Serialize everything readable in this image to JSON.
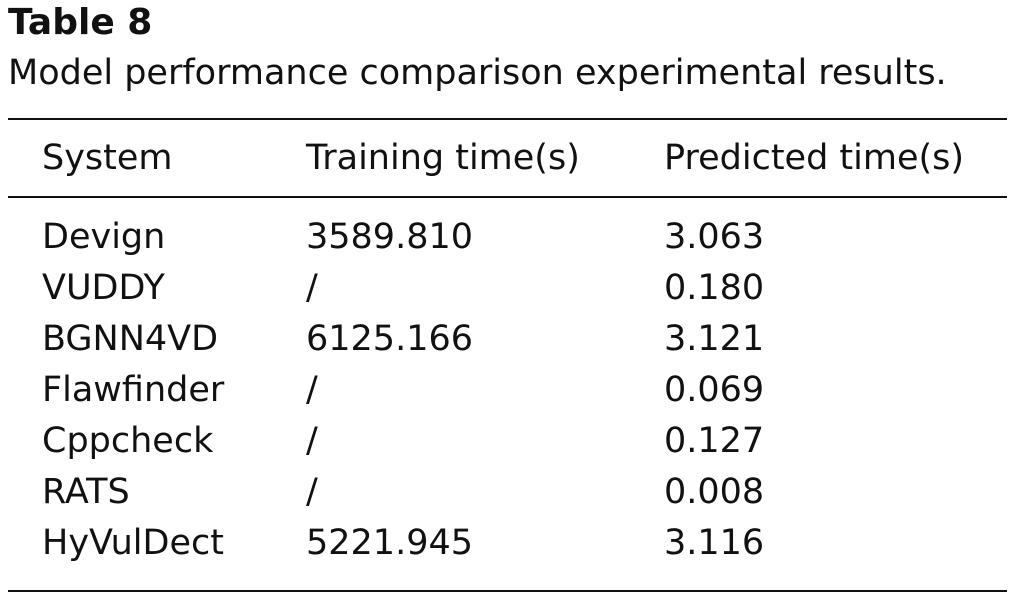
{
  "table": {
    "label": "Table 8",
    "caption": "Model performance comparison experimental results.",
    "columns": [
      "System",
      "Training time(s)",
      "Predicted time(s)"
    ],
    "rows": [
      {
        "system": "Devign",
        "training": "3589.810",
        "predicted": "3.063"
      },
      {
        "system": "VUDDY",
        "training": "/",
        "predicted": "0.180"
      },
      {
        "system": "BGNN4VD",
        "training": "6125.166",
        "predicted": "3.121"
      },
      {
        "system": "Flawfinder",
        "training": "/",
        "predicted": "0.069"
      },
      {
        "system": "Cppcheck",
        "training": "/",
        "predicted": "0.127"
      },
      {
        "system": "RATS",
        "training": "/",
        "predicted": "0.008"
      },
      {
        "system": "HyVulDect",
        "training": "5221.945",
        "predicted": "3.116"
      }
    ]
  }
}
